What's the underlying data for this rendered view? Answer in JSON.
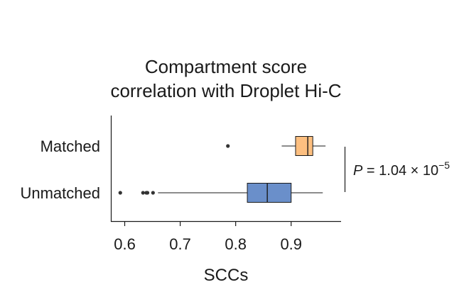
{
  "chart_data": {
    "type": "boxplot",
    "orientation": "horizontal",
    "title": [
      "Compartment score",
      "correlation with Droplet Hi-C"
    ],
    "xlabel": "SCCs",
    "ylabel": "",
    "xlim": [
      0.575,
      0.99
    ],
    "xticks": [
      0.6,
      0.7,
      0.8,
      0.9
    ],
    "xtick_labels": [
      "0.6",
      "0.7",
      "0.8",
      "0.9"
    ],
    "grid": false,
    "series": [
      {
        "name": "Matched",
        "color": "#fdbf80",
        "whisker_low": 0.883,
        "q1": 0.908,
        "median": 0.93,
        "q3": 0.939,
        "whisker_high": 0.962,
        "outliers": [
          0.786
        ]
      },
      {
        "name": "Unmatched",
        "color": "#6a8fca",
        "whisker_low": 0.66,
        "q1": 0.821,
        "median": 0.857,
        "q3": 0.9,
        "whisker_high": 0.957,
        "outliers": [
          0.592,
          0.633,
          0.639,
          0.641,
          0.651
        ]
      }
    ],
    "annotation": {
      "italic": "P",
      "text": " = 1.04 × 10",
      "superscript": "−5"
    }
  }
}
